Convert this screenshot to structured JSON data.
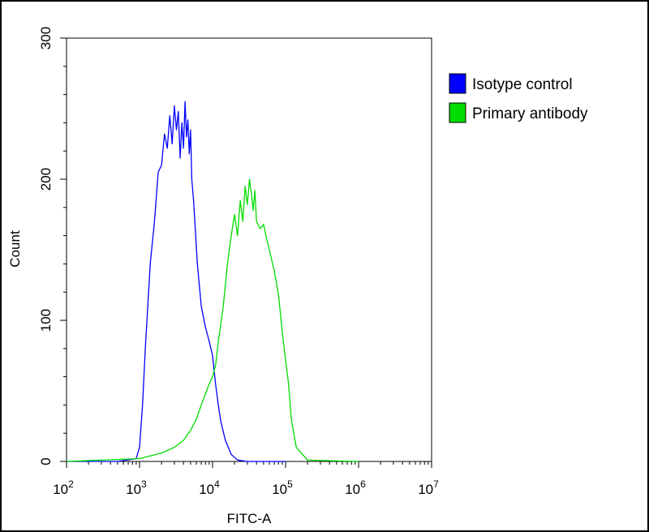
{
  "chart_data": {
    "type": "line",
    "xlabel": "FITC-A",
    "ylabel": "Count",
    "xscale": "log",
    "xlim": [
      100,
      10000000
    ],
    "ylim": [
      0,
      300
    ],
    "x_ticks": [
      {
        "value": 100,
        "base": "10",
        "exp": "2"
      },
      {
        "value": 1000,
        "base": "10",
        "exp": "3"
      },
      {
        "value": 10000,
        "base": "10",
        "exp": "4"
      },
      {
        "value": 100000,
        "base": "10",
        "exp": "5"
      },
      {
        "value": 1000000,
        "base": "10",
        "exp": "6"
      },
      {
        "value": 10000000,
        "base": "10",
        "exp": "7"
      }
    ],
    "y_ticks": [
      "0",
      "100",
      "200",
      "300"
    ],
    "y_tick_values": [
      0,
      100,
      200,
      300
    ],
    "legend": "right",
    "series": [
      {
        "name": "Isotype control",
        "color": "#0000ff",
        "x": [
          100,
          500,
          900,
          1000,
          1100,
          1200,
          1400,
          1600,
          1800,
          2000,
          2200,
          2400,
          2600,
          2800,
          3000,
          3200,
          3400,
          3600,
          3800,
          4000,
          4200,
          4400,
          4600,
          4800,
          5000,
          5200,
          5500,
          5800,
          6200,
          7000,
          8000,
          9000,
          10000,
          11000,
          12000,
          13000,
          15000,
          18000,
          22000,
          30000,
          100000
        ],
        "y": [
          0,
          0,
          2,
          10,
          40,
          80,
          140,
          170,
          205,
          210,
          232,
          222,
          245,
          225,
          252,
          235,
          248,
          215,
          240,
          222,
          255,
          230,
          242,
          218,
          235,
          200,
          185,
          165,
          140,
          110,
          95,
          85,
          75,
          55,
          40,
          28,
          15,
          5,
          1,
          0,
          0
        ]
      },
      {
        "name": "Primary antibody",
        "color": "#00dd00",
        "x": [
          100,
          1000,
          2000,
          3000,
          4000,
          5000,
          6000,
          7000,
          8000,
          9000,
          10000,
          11000,
          12000,
          14000,
          16000,
          18000,
          20000,
          22000,
          24000,
          26000,
          28000,
          30000,
          32000,
          34000,
          36000,
          38000,
          40000,
          45000,
          50000,
          55000,
          60000,
          70000,
          80000,
          90000,
          100000,
          110000,
          120000,
          140000,
          200000,
          1000000
        ],
        "y": [
          0,
          2,
          6,
          10,
          15,
          22,
          30,
          40,
          48,
          55,
          60,
          68,
          85,
          110,
          140,
          160,
          175,
          160,
          185,
          170,
          195,
          182,
          200,
          190,
          178,
          192,
          170,
          165,
          168,
          158,
          150,
          135,
          118,
          92,
          72,
          55,
          30,
          10,
          1,
          0
        ]
      }
    ]
  }
}
